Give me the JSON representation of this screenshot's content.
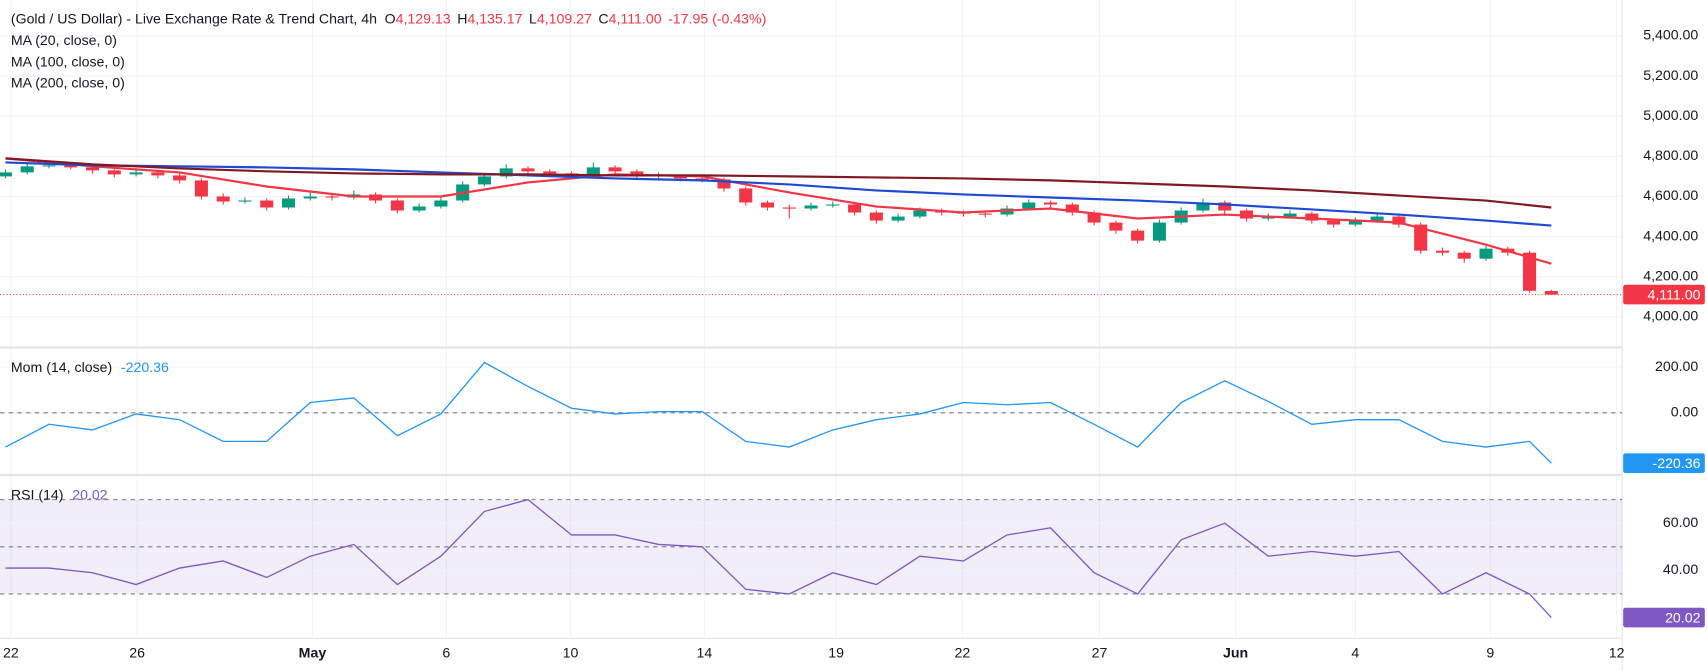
{
  "chart_data": [
    {
      "type": "candlestick",
      "title": "(Gold / US Dollar) - Live Exchange Rate & Trend Chart, 4h",
      "ohlc": [
        {
          "label": "O",
          "value": "4,129.13"
        },
        {
          "label": "H",
          "value": "4,135.17"
        },
        {
          "label": "L",
          "value": "4,109.27"
        },
        {
          "label": "C",
          "value": "4,111.00"
        }
      ],
      "change": "-17.95 (-0.43%)",
      "last_label": "4,111.00",
      "up_color": "#089981",
      "down_color": "#f23645",
      "candles": [
        [
          4700,
          4735,
          4690,
          4720
        ],
        [
          4720,
          4765,
          4710,
          4750
        ],
        [
          4750,
          4770,
          4740,
          4755
        ],
        [
          4755,
          4765,
          4735,
          4745
        ],
        [
          4745,
          4755,
          4715,
          4730
        ],
        [
          4730,
          4740,
          4695,
          4710
        ],
        [
          4710,
          4735,
          4700,
          4720
        ],
        [
          4720,
          4730,
          4690,
          4705
        ],
        [
          4705,
          4715,
          4665,
          4680
        ],
        [
          4680,
          4690,
          4585,
          4600
        ],
        [
          4600,
          4615,
          4560,
          4575
        ],
        [
          4575,
          4595,
          4565,
          4580
        ],
        [
          4580,
          4590,
          4530,
          4545
        ],
        [
          4545,
          4605,
          4535,
          4590
        ],
        [
          4590,
          4620,
          4580,
          4600
        ],
        [
          4600,
          4615,
          4580,
          4595
        ],
        [
          4595,
          4630,
          4585,
          4610
        ],
        [
          4610,
          4620,
          4565,
          4580
        ],
        [
          4580,
          4590,
          4515,
          4530
        ],
        [
          4530,
          4565,
          4520,
          4550
        ],
        [
          4550,
          4595,
          4540,
          4580
        ],
        [
          4580,
          4675,
          4570,
          4660
        ],
        [
          4660,
          4715,
          4650,
          4700
        ],
        [
          4700,
          4760,
          4690,
          4740
        ],
        [
          4740,
          4750,
          4710,
          4725
        ],
        [
          4725,
          4735,
          4700,
          4715
        ],
        [
          4715,
          4725,
          4685,
          4700
        ],
        [
          4700,
          4770,
          4690,
          4745
        ],
        [
          4745,
          4755,
          4710,
          4725
        ],
        [
          4725,
          4735,
          4690,
          4705
        ],
        [
          4705,
          4720,
          4685,
          4700
        ],
        [
          4700,
          4710,
          4675,
          4690
        ],
        [
          4690,
          4705,
          4670,
          4685
        ],
        [
          4685,
          4695,
          4625,
          4640
        ],
        [
          4640,
          4650,
          4555,
          4570
        ],
        [
          4570,
          4580,
          4530,
          4545
        ],
        [
          4545,
          4560,
          4490,
          4540
        ],
        [
          4540,
          4570,
          4530,
          4555
        ],
        [
          4555,
          4575,
          4545,
          4560
        ],
        [
          4560,
          4570,
          4505,
          4520
        ],
        [
          4520,
          4530,
          4465,
          4480
        ],
        [
          4480,
          4515,
          4470,
          4500
        ],
        [
          4500,
          4545,
          4490,
          4530
        ],
        [
          4530,
          4540,
          4505,
          4520
        ],
        [
          4520,
          4530,
          4500,
          4515
        ],
        [
          4515,
          4525,
          4495,
          4510
        ],
        [
          4510,
          4555,
          4500,
          4540
        ],
        [
          4540,
          4585,
          4530,
          4570
        ],
        [
          4570,
          4580,
          4545,
          4560
        ],
        [
          4560,
          4570,
          4505,
          4520
        ],
        [
          4520,
          4530,
          4455,
          4470
        ],
        [
          4470,
          4480,
          4415,
          4430
        ],
        [
          4430,
          4440,
          4365,
          4380
        ],
        [
          4380,
          4485,
          4370,
          4470
        ],
        [
          4470,
          4545,
          4460,
          4530
        ],
        [
          4530,
          4590,
          4520,
          4570
        ],
        [
          4570,
          4580,
          4515,
          4530
        ],
        [
          4530,
          4540,
          4475,
          4490
        ],
        [
          4490,
          4515,
          4480,
          4500
        ],
        [
          4500,
          4530,
          4490,
          4515
        ],
        [
          4515,
          4525,
          4465,
          4480
        ],
        [
          4480,
          4490,
          4445,
          4460
        ],
        [
          4460,
          4495,
          4450,
          4480
        ],
        [
          4480,
          4520,
          4470,
          4500
        ],
        [
          4500,
          4510,
          4445,
          4460
        ],
        [
          4460,
          4470,
          4315,
          4330
        ],
        [
          4330,
          4345,
          4305,
          4320
        ],
        [
          4320,
          4330,
          4270,
          4290
        ],
        [
          4290,
          4355,
          4280,
          4340
        ],
        [
          4340,
          4350,
          4305,
          4320
        ],
        [
          4320,
          4330,
          4120,
          4130
        ],
        [
          4129.13,
          4135.17,
          4109.27,
          4111
        ]
      ],
      "ma_x": [
        0,
        4,
        8,
        12,
        16,
        20,
        24,
        28,
        32,
        36,
        40,
        44,
        48,
        52,
        56,
        60,
        64,
        68,
        71
      ],
      "series": [
        {
          "name": "MA (20, close, 0)",
          "color": "#f23645",
          "values": [
            4790,
            4750,
            4720,
            4650,
            4600,
            4600,
            4670,
            4710,
            4700,
            4620,
            4550,
            4520,
            4540,
            4490,
            4510,
            4490,
            4470,
            4360,
            4265
          ]
        },
        {
          "name": "MA (100, close, 0)",
          "color": "#1e4bd2",
          "values": [
            4770,
            4755,
            4750,
            4745,
            4735,
            4720,
            4705,
            4690,
            4680,
            4660,
            4630,
            4610,
            4595,
            4580,
            4560,
            4535,
            4510,
            4480,
            4455
          ]
        },
        {
          "name": "MA (200, close, 0)",
          "color": "#801922",
          "values": [
            4790,
            4760,
            4740,
            4725,
            4715,
            4710,
            4710,
            4705,
            4705,
            4700,
            4695,
            4690,
            4680,
            4665,
            4650,
            4630,
            4605,
            4580,
            4545
          ]
        }
      ],
      "ylim": [
        3853,
        5579
      ],
      "yticks": [
        {
          "value": 4000,
          "label": "4,000.00"
        },
        {
          "value": 4200,
          "label": "4,200.00"
        },
        {
          "value": 4400,
          "label": "4,400.00"
        },
        {
          "value": 4600,
          "label": "4,600.00"
        },
        {
          "value": 4800,
          "label": "4,800.00"
        },
        {
          "value": 5000,
          "label": "5,000.00"
        },
        {
          "value": 5200,
          "label": "5,200.00"
        },
        {
          "value": 5400,
          "label": "5,400.00"
        }
      ],
      "xlim": [
        -0.25,
        74.25
      ],
      "xticks": [
        {
          "value": 0.25,
          "label": "22"
        },
        {
          "value": 6.05,
          "label": "26"
        },
        {
          "value": 14.1,
          "label": "May"
        },
        {
          "value": 20.25,
          "label": "6"
        },
        {
          "value": 25.95,
          "label": "10"
        },
        {
          "value": 32.1,
          "label": "14"
        },
        {
          "value": 38.15,
          "label": "19"
        },
        {
          "value": 43.95,
          "label": "22"
        },
        {
          "value": 50.25,
          "label": "27"
        },
        {
          "value": 56.5,
          "label": "Jun"
        },
        {
          "value": 62,
          "label": "4"
        },
        {
          "value": 68.2,
          "label": "9"
        },
        {
          "value": 74,
          "label": "12"
        }
      ],
      "grid": true
    },
    {
      "type": "line",
      "name": "Mom (14, close)",
      "color": "#2196f3",
      "x": [
        0,
        2,
        4,
        6,
        8,
        10,
        12,
        14,
        16,
        18,
        20,
        22,
        24,
        26,
        28,
        30,
        32,
        34,
        36,
        38,
        40,
        42,
        44,
        46,
        48,
        50,
        52,
        54,
        56,
        58,
        60,
        62,
        64,
        66,
        68,
        70,
        71
      ],
      "values": [
        -150,
        -50,
        -75,
        -5,
        -30,
        -125,
        -125,
        45,
        65,
        -100,
        -5,
        220,
        115,
        20,
        -5,
        5,
        5,
        -125,
        -150,
        -75,
        -30,
        -5,
        45,
        35,
        45,
        -50,
        -150,
        45,
        140,
        50,
        -50,
        -30,
        -30,
        -125,
        -150,
        -125,
        -220.36
      ],
      "ylim": [
        -267,
        281
      ],
      "yticks": [
        {
          "value": 0,
          "label": "0.00"
        },
        {
          "value": 200,
          "label": "200.00"
        }
      ],
      "zero_line": 0
    },
    {
      "type": "line",
      "name": "RSI (14)",
      "color": "#7e57c2",
      "x": [
        0,
        2,
        4,
        6,
        8,
        10,
        12,
        14,
        16,
        18,
        20,
        22,
        24,
        26,
        28,
        30,
        32,
        34,
        36,
        38,
        40,
        42,
        44,
        46,
        48,
        50,
        52,
        54,
        56,
        58,
        60,
        62,
        64,
        66,
        68,
        70,
        71
      ],
      "values": [
        41,
        41,
        39,
        34,
        41,
        44,
        37,
        46,
        51,
        34,
        46,
        65,
        70,
        55,
        55,
        51,
        50,
        32,
        30,
        39,
        34,
        46,
        44,
        55,
        58,
        39,
        30,
        53,
        60,
        46,
        48,
        46,
        48,
        30,
        39,
        30,
        20.02
      ],
      "ylim": [
        11.2,
        80
      ],
      "yticks": [
        {
          "value": 40,
          "label": "40.00"
        },
        {
          "value": 60,
          "label": "60.00"
        }
      ],
      "band": [
        30,
        70
      ],
      "levels": [
        70,
        50,
        30
      ]
    }
  ]
}
